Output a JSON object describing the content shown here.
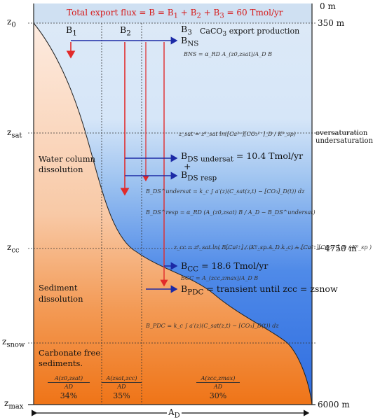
{
  "title": {
    "text": "Total export flux = B = B",
    "sub1": "1",
    "t2": " + B",
    "sub2": "2",
    "t3": " + B",
    "sub3": "3",
    "t4": " = 60 Tmol/yr"
  },
  "colors": {
    "sky": "#cfe0f2",
    "water_top": "#e6f0fb",
    "water_mid": "#7fb0ec",
    "water_deep": "#2f6fe0",
    "sed_top": "#fde2d0",
    "sed_deep": "#f07a1c",
    "arrow_red": "#e12a2a",
    "arrow_blue": "#1c2aa6"
  },
  "depths": {
    "surface": "0 m",
    "z0": "350 m",
    "zcc": "~4750 m",
    "zmax": "6000 m"
  },
  "levels": {
    "z0": {
      "main": "z",
      "sub": "0"
    },
    "zsat": {
      "main": "z",
      "sub": "sat"
    },
    "zcc": {
      "main": "z",
      "sub": "cc"
    },
    "zsnow": {
      "main": "z",
      "sub": "snow"
    },
    "zmax": {
      "main": "z",
      "sub": "max"
    }
  },
  "saturation": {
    "over": "oversaturation",
    "under": "undersaturation"
  },
  "fluxes": {
    "b1": {
      "main": "B",
      "sub": "1"
    },
    "b2": {
      "main": "B",
      "sub": "2"
    },
    "b3": {
      "main": "B",
      "sub": "3"
    },
    "bns": {
      "main": "B",
      "sub": "NS"
    },
    "caco3": {
      "pre": "CaCO",
      "sub": "3",
      "post": " export production"
    },
    "bds_under": {
      "main": "B",
      "sub": "DS undersat"
    },
    "plus": "+",
    "bds_resp": {
      "main": "B",
      "sub": "DS resp"
    },
    "bds_value": " = 10.4 Tmol/yr",
    "bcc": {
      "main": "B",
      "sub": "CC",
      "post": " = 18.6 Tmol/yr"
    },
    "bpdc": {
      "main": "B",
      "sub": "PDC",
      "post": " = transient until zcc = zsnow"
    }
  },
  "equations": {
    "bns": "BNS = α_RD A_(z0,zsat)/A_D B",
    "zsat": "z_sat = z⁰_sat ln([Ca²⁺][CO₃²⁻]_D / K⁰_sp)",
    "bds_under": "B_DS^undersat = k_c ∫ a′(z)(C_sat(z,t) − [CO₃]_D(t)) dz",
    "bds_resp": "B_DS^resp = α_RD (A_(z0,zsat) B / A_D − B_DS^undersat)",
    "zcc": "z_cc = z⁰_sat ln( B[Ca²⁺] / (K⁰_sp A_D k_c) + [Ca²⁺][CO₃²⁻]_D / K⁰_sp )",
    "bcc": "BCC = A_(zcc,zmax)/A_D B",
    "bpdc": "B_PDC = k_c ∫ a′(z)(C_sat(z,t) − [CO₃]_D(t)) dz"
  },
  "regions": {
    "water": [
      "Water column",
      "dissolution"
    ],
    "sediment": [
      "Sediment",
      "dissolution"
    ],
    "free": [
      "Carbonate free",
      "sediments."
    ]
  },
  "fractions": [
    {
      "num": "A(z0,zsat)",
      "den": "AD",
      "pct": "34%"
    },
    {
      "num": "A(zsat,zcc)",
      "den": "AD",
      "pct": "35%"
    },
    {
      "num": "A(zcc,zmax)",
      "den": "AD",
      "pct": "30%"
    }
  ],
  "area_axis": {
    "main": "A",
    "sub": "D"
  }
}
